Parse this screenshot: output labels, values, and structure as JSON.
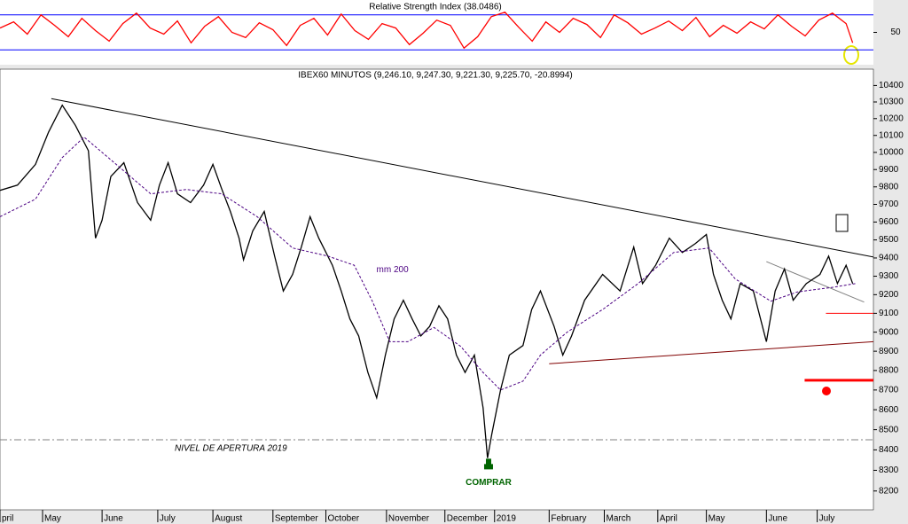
{
  "chart_data": [
    {
      "type": "line",
      "title": "Relative Strength Index (38.0486)",
      "color": "#ff0000",
      "x": [
        0,
        0.25,
        0.5,
        0.75,
        1,
        1.25,
        1.5,
        1.75,
        2,
        2.25,
        2.5,
        2.75,
        3,
        3.25,
        3.5,
        3.75,
        4,
        4.25,
        4.5,
        4.75,
        5,
        5.25,
        5.5,
        5.75,
        6,
        6.25,
        6.5,
        6.75,
        7,
        7.25,
        7.5,
        7.75,
        8,
        8.25,
        8.5,
        8.75,
        9,
        9.25,
        9.5,
        9.75,
        10,
        10.25,
        10.5,
        10.75,
        11,
        11.25,
        11.5,
        11.75,
        12,
        12.25,
        12.5,
        12.75,
        13,
        13.25,
        13.5,
        13.75,
        14,
        14.25,
        14.5,
        14.75,
        15,
        15.25,
        15.5,
        15.62
      ],
      "values": [
        55,
        62,
        48,
        70,
        58,
        45,
        66,
        52,
        40,
        60,
        72,
        55,
        48,
        63,
        38,
        57,
        68,
        50,
        44,
        61,
        53,
        35,
        58,
        66,
        47,
        71,
        52,
        42,
        60,
        55,
        36,
        49,
        64,
        58,
        32,
        45,
        68,
        73,
        56,
        40,
        62,
        50,
        66,
        59,
        44,
        70,
        61,
        48,
        55,
        63,
        52,
        67,
        45,
        58,
        49,
        62,
        54,
        70,
        57,
        46,
        64,
        72,
        60,
        38.05
      ],
      "xlim": [
        0,
        16
      ],
      "ylim": [
        14,
        85
      ],
      "yticks": [
        50
      ],
      "levels": [
        {
          "value": 70,
          "color": "#0000ff"
        },
        {
          "value": 30,
          "color": "#0000ff"
        }
      ]
    },
    {
      "type": "line",
      "title": "IBEX60 MINUTOS (9,246.10, 9,247.30, 9,221.30, 9,225.70, -20.8994)",
      "log_scale": true,
      "xlim": [
        0,
        16
      ],
      "ylim": [
        8110,
        10500
      ],
      "yticks": [
        8200,
        8300,
        8400,
        8500,
        8600,
        8700,
        8800,
        8900,
        9000,
        9100,
        9200,
        9300,
        9400,
        9500,
        9600,
        9700,
        9800,
        9900,
        10000,
        10100,
        10200,
        10300,
        10400
      ],
      "xticks": [
        {
          "value": 0,
          "label": "pril"
        },
        {
          "value": 0.78,
          "label": "May"
        },
        {
          "value": 1.87,
          "label": "June"
        },
        {
          "value": 2.89,
          "label": "July"
        },
        {
          "value": 3.9,
          "label": "August"
        },
        {
          "value": 5.0,
          "label": "September"
        },
        {
          "value": 5.97,
          "label": "October"
        },
        {
          "value": 7.08,
          "label": "November"
        },
        {
          "value": 8.15,
          "label": "December"
        },
        {
          "value": 9.06,
          "label": "2019"
        },
        {
          "value": 10.06,
          "label": "February"
        },
        {
          "value": 11.07,
          "label": "March"
        },
        {
          "value": 12.05,
          "label": "April"
        },
        {
          "value": 12.94,
          "label": "May"
        },
        {
          "value": 14.04,
          "label": "June"
        },
        {
          "value": 14.97,
          "label": "July"
        }
      ],
      "series": [
        {
          "color": "#000000",
          "x": [
            0,
            0.32,
            0.65,
            0.89,
            1.14,
            1.38,
            1.62,
            1.75,
            1.87,
            2.03,
            2.27,
            2.52,
            2.76,
            2.92,
            3.08,
            3.25,
            3.49,
            3.73,
            3.9,
            4.06,
            4.22,
            4.38,
            4.46,
            4.63,
            4.84,
            5.03,
            5.19,
            5.36,
            5.52,
            5.68,
            5.84,
            6.09,
            6.25,
            6.41,
            6.57,
            6.74,
            6.9,
            7.06,
            7.22,
            7.39,
            7.55,
            7.71,
            7.87,
            8.04,
            8.2,
            8.36,
            8.52,
            8.69,
            8.85,
            8.93,
            9.01,
            9.17,
            9.33,
            9.58,
            9.74,
            9.9,
            10.15,
            10.31,
            10.47,
            10.71,
            11.04,
            11.36,
            11.61,
            11.77,
            12.01,
            12.26,
            12.5,
            12.74,
            12.94,
            13.07,
            13.23,
            13.39,
            13.56,
            13.8,
            14.04,
            14.2,
            14.37,
            14.53,
            14.77,
            15.02,
            15.18,
            15.34,
            15.5,
            15.62
          ],
          "values": [
            9780,
            9810,
            9930,
            10120,
            10280,
            10160,
            10010,
            9510,
            9610,
            9860,
            9940,
            9710,
            9610,
            9810,
            9940,
            9760,
            9710,
            9810,
            9930,
            9790,
            9660,
            9510,
            9390,
            9550,
            9660,
            9410,
            9220,
            9310,
            9460,
            9630,
            9510,
            9360,
            9220,
            9070,
            8980,
            8790,
            8660,
            8880,
            9070,
            9170,
            9070,
            8980,
            9030,
            9140,
            9070,
            8880,
            8790,
            8880,
            8610,
            8360,
            8480,
            8700,
            8880,
            8930,
            9120,
            9220,
            9030,
            8880,
            8980,
            9170,
            9310,
            9220,
            9460,
            9260,
            9360,
            9510,
            9430,
            9480,
            9530,
            9310,
            9170,
            9070,
            9260,
            9220,
            8950,
            9220,
            9340,
            9170,
            9260,
            9310,
            9410,
            9260,
            9360,
            9260
          ]
        },
        {
          "name": "mm 200",
          "color": "#4b0082",
          "dashed": true,
          "x": [
            0,
            0.65,
            1.14,
            1.54,
            2.11,
            2.76,
            3.41,
            4.06,
            4.71,
            5.36,
            6.01,
            6.49,
            6.82,
            7.14,
            7.47,
            7.95,
            8.44,
            8.85,
            9.17,
            9.58,
            9.9,
            10.39,
            11.04,
            11.69,
            12.34,
            12.99,
            13.47,
            14.12,
            14.61,
            15.26,
            15.67
          ],
          "values": [
            9630,
            9730,
            9970,
            10090,
            9935,
            9760,
            9785,
            9760,
            9630,
            9455,
            9410,
            9360,
            9165,
            8950,
            8950,
            9025,
            8925,
            8790,
            8700,
            8745,
            8880,
            9000,
            9120,
            9260,
            9430,
            9455,
            9285,
            9165,
            9215,
            9240,
            9260
          ]
        }
      ],
      "trendlines": [
        {
          "x": [
            0.94,
            16
          ],
          "values": [
            10320,
            9405
          ],
          "color": "#000000"
        },
        {
          "x": [
            10.06,
            16
          ],
          "values": [
            8835,
            8950
          ],
          "color": "#800000"
        },
        {
          "x": [
            14.04,
            15.83
          ],
          "values": [
            9380,
            9160
          ],
          "color": "#808080"
        }
      ],
      "levels": [
        {
          "value": 8450,
          "label": "NIVEL DE APERTURA 2019",
          "color": "#808080",
          "x": [
            0,
            16
          ]
        },
        {
          "value": 9100,
          "color": "#ff0000",
          "x": [
            15.13,
            16
          ]
        },
        {
          "value": 8750,
          "color": "#ff0000",
          "x": [
            14.74,
            16
          ]
        }
      ],
      "annotations": [
        {
          "text": "COMPRAR",
          "x": 8.95,
          "value": 8240,
          "color": "#006400"
        }
      ]
    }
  ]
}
